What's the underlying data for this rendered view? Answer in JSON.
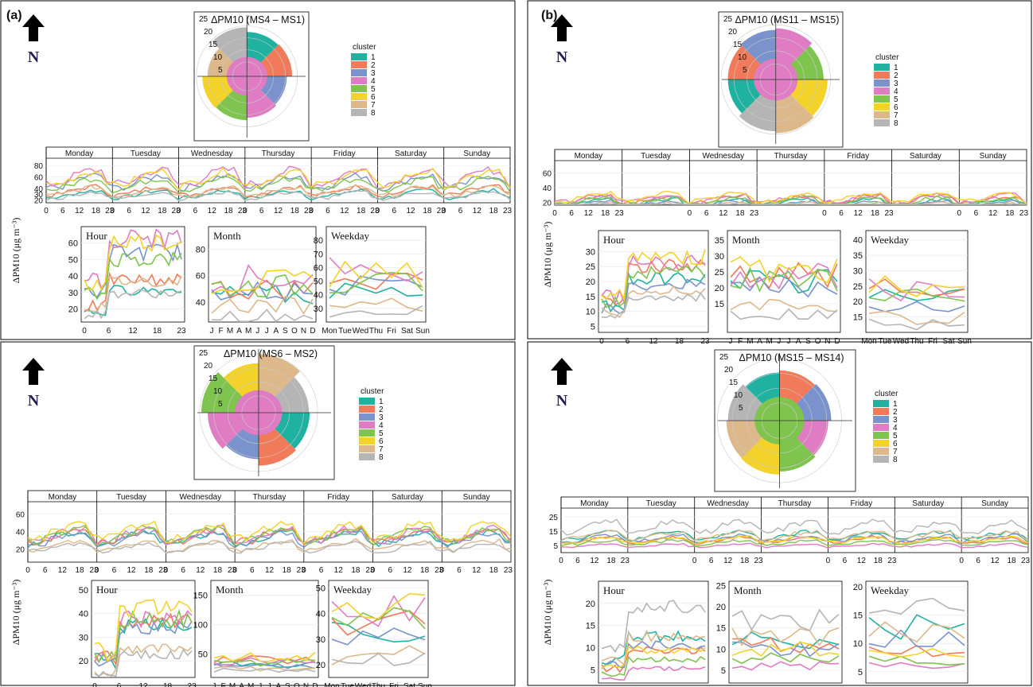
{
  "colors": [
    "#20b2a0",
    "#f07a5a",
    "#7a93cc",
    "#e07cc4",
    "#7fc44e",
    "#f3d22a",
    "#dcb88a",
    "#b5b5b5"
  ],
  "cluster_title": "cluster",
  "north": "N",
  "xlabel_units": "ΔPM10 (μg m⁻³)",
  "days": [
    "Monday",
    "Tuesday",
    "Wednesday",
    "Thursday",
    "Friday",
    "Saturday",
    "Sunday"
  ],
  "hour_ticks": [
    "0",
    "6",
    "12",
    "18",
    "23"
  ],
  "months": [
    "J",
    "F",
    "M",
    "A",
    "M",
    "J",
    "J",
    "A",
    "S",
    "O",
    "N",
    "D"
  ],
  "weekdays": [
    "Mon",
    "Tue",
    "Wed",
    "Thu",
    "Fri",
    "Sat",
    "Sun"
  ],
  "panel_titles": {
    "hour": "Hour",
    "month": "Month",
    "weekday": "Weekday"
  },
  "panels": [
    {
      "label": "(a)",
      "title": "ΔPM10 (MS4 – MS1)",
      "rings": [
        "25",
        "20",
        "15",
        "10",
        "5"
      ]
    },
    {
      "label": "(b)",
      "title": "ΔPM10 (MS11 – MS15)",
      "rings": [
        "25",
        "20",
        "15",
        "10",
        "5"
      ]
    },
    {
      "label": "",
      "title": "ΔPM10 (MS6 – MS2)",
      "rings": [
        "25",
        "20",
        "15",
        "10",
        "5"
      ]
    },
    {
      "label": "",
      "title": "ΔPM10 (MS15 – MS14)",
      "rings": [
        "25",
        "20",
        "15",
        "10",
        "5"
      ]
    }
  ],
  "chart_data": [
    {
      "type": "line",
      "title": "ΔPM10 (MS4 – MS1)",
      "ylabel": "ΔPM10 (μg m⁻³)",
      "clusters": [
        "1",
        "2",
        "3",
        "4",
        "5",
        "6",
        "7",
        "8"
      ],
      "weekly_ylim": [
        15,
        90
      ],
      "weekly_yticks": [
        20,
        30,
        40,
        60,
        80
      ],
      "hour": {
        "ylim": [
          12,
          70
        ],
        "yticks": [
          20,
          30,
          40,
          50,
          60
        ],
        "base": [
          30,
          36,
          52,
          60,
          48,
          58,
          35,
          28
        ]
      },
      "month": {
        "ylim": [
          25,
          97
        ],
        "yticks": [
          40,
          60,
          80
        ],
        "base": [
          45,
          50,
          48,
          58,
          52,
          55,
          38,
          30
        ]
      },
      "weekday": {
        "ylim": [
          20,
          90
        ],
        "yticks": [
          30,
          40,
          50,
          60,
          70,
          80
        ],
        "base": [
          42,
          52,
          48,
          58,
          50,
          55,
          33,
          28
        ]
      }
    },
    {
      "type": "line",
      "title": "ΔPM10 (MS11 – MS15)",
      "ylabel": "ΔPM10 (μg m⁻³)",
      "clusters": [
        "1",
        "2",
        "3",
        "4",
        "5",
        "6",
        "7",
        "8"
      ],
      "weekly_ylim": [
        16,
        75
      ],
      "weekly_yticks": [
        20,
        40,
        60
      ],
      "hour": {
        "ylim": [
          3,
          37
        ],
        "yticks": [
          5,
          10,
          15,
          20,
          25,
          30
        ],
        "base": [
          20,
          24,
          18,
          25,
          22,
          27,
          16,
          14
        ]
      },
      "month": {
        "ylim": [
          6,
          38
        ],
        "yticks": [
          15,
          20,
          25,
          30,
          35
        ],
        "base": [
          22,
          24,
          20,
          24,
          23,
          26,
          14,
          12
        ]
      },
      "weekday": {
        "ylim": [
          10,
          43
        ],
        "yticks": [
          15,
          20,
          25,
          30,
          35,
          40
        ],
        "base": [
          22,
          25,
          20,
          24,
          23,
          26,
          15,
          13
        ]
      }
    },
    {
      "type": "line",
      "title": "ΔPM10 (MS6 – MS2)",
      "ylabel": "ΔPM10 (μg m⁻³)",
      "clusters": [
        "1",
        "2",
        "3",
        "4",
        "5",
        "6",
        "7",
        "8"
      ],
      "weekly_ylim": [
        5,
        72
      ],
      "weekly_yticks": [
        20,
        40,
        60
      ],
      "hour": {
        "ylim": [
          13,
          54
        ],
        "yticks": [
          20,
          30,
          40,
          50
        ],
        "base": [
          33,
          35,
          32,
          36,
          36,
          40,
          24,
          22
        ]
      },
      "month": {
        "ylim": [
          10,
          175
        ],
        "yticks": [
          50,
          100,
          150
        ],
        "base": [
          32,
          40,
          30,
          38,
          35,
          45,
          25,
          22
        ]
      },
      "weekday": {
        "ylim": [
          15,
          53
        ],
        "yticks": [
          20,
          30,
          40,
          50
        ],
        "base": [
          35,
          38,
          33,
          40,
          38,
          44,
          24,
          22
        ]
      }
    },
    {
      "type": "line",
      "title": "ΔPM10 (MS15 – MS14)",
      "ylabel": "ΔPM10 (μg m⁻³)",
      "clusters": [
        "1",
        "2",
        "3",
        "4",
        "5",
        "6",
        "7",
        "8"
      ],
      "weekly_ylim": [
        0,
        30
      ],
      "weekly_yticks": [
        5,
        15,
        25
      ],
      "hour": {
        "ylim": [
          2,
          25
        ],
        "yticks": [
          5,
          10,
          15,
          20
        ],
        "base": [
          12,
          9,
          10,
          5,
          7,
          9,
          12,
          18
        ]
      },
      "month": {
        "ylim": [
          2,
          26
        ],
        "yticks": [
          5,
          10,
          15,
          20,
          25
        ],
        "base": [
          12,
          11,
          10,
          6,
          8,
          10,
          13,
          17
        ]
      },
      "weekday": {
        "ylim": [
          3,
          21
        ],
        "yticks": [
          5,
          10,
          15,
          20
        ],
        "base": [
          13,
          9,
          11,
          6,
          7,
          9,
          12,
          17
        ]
      }
    }
  ]
}
